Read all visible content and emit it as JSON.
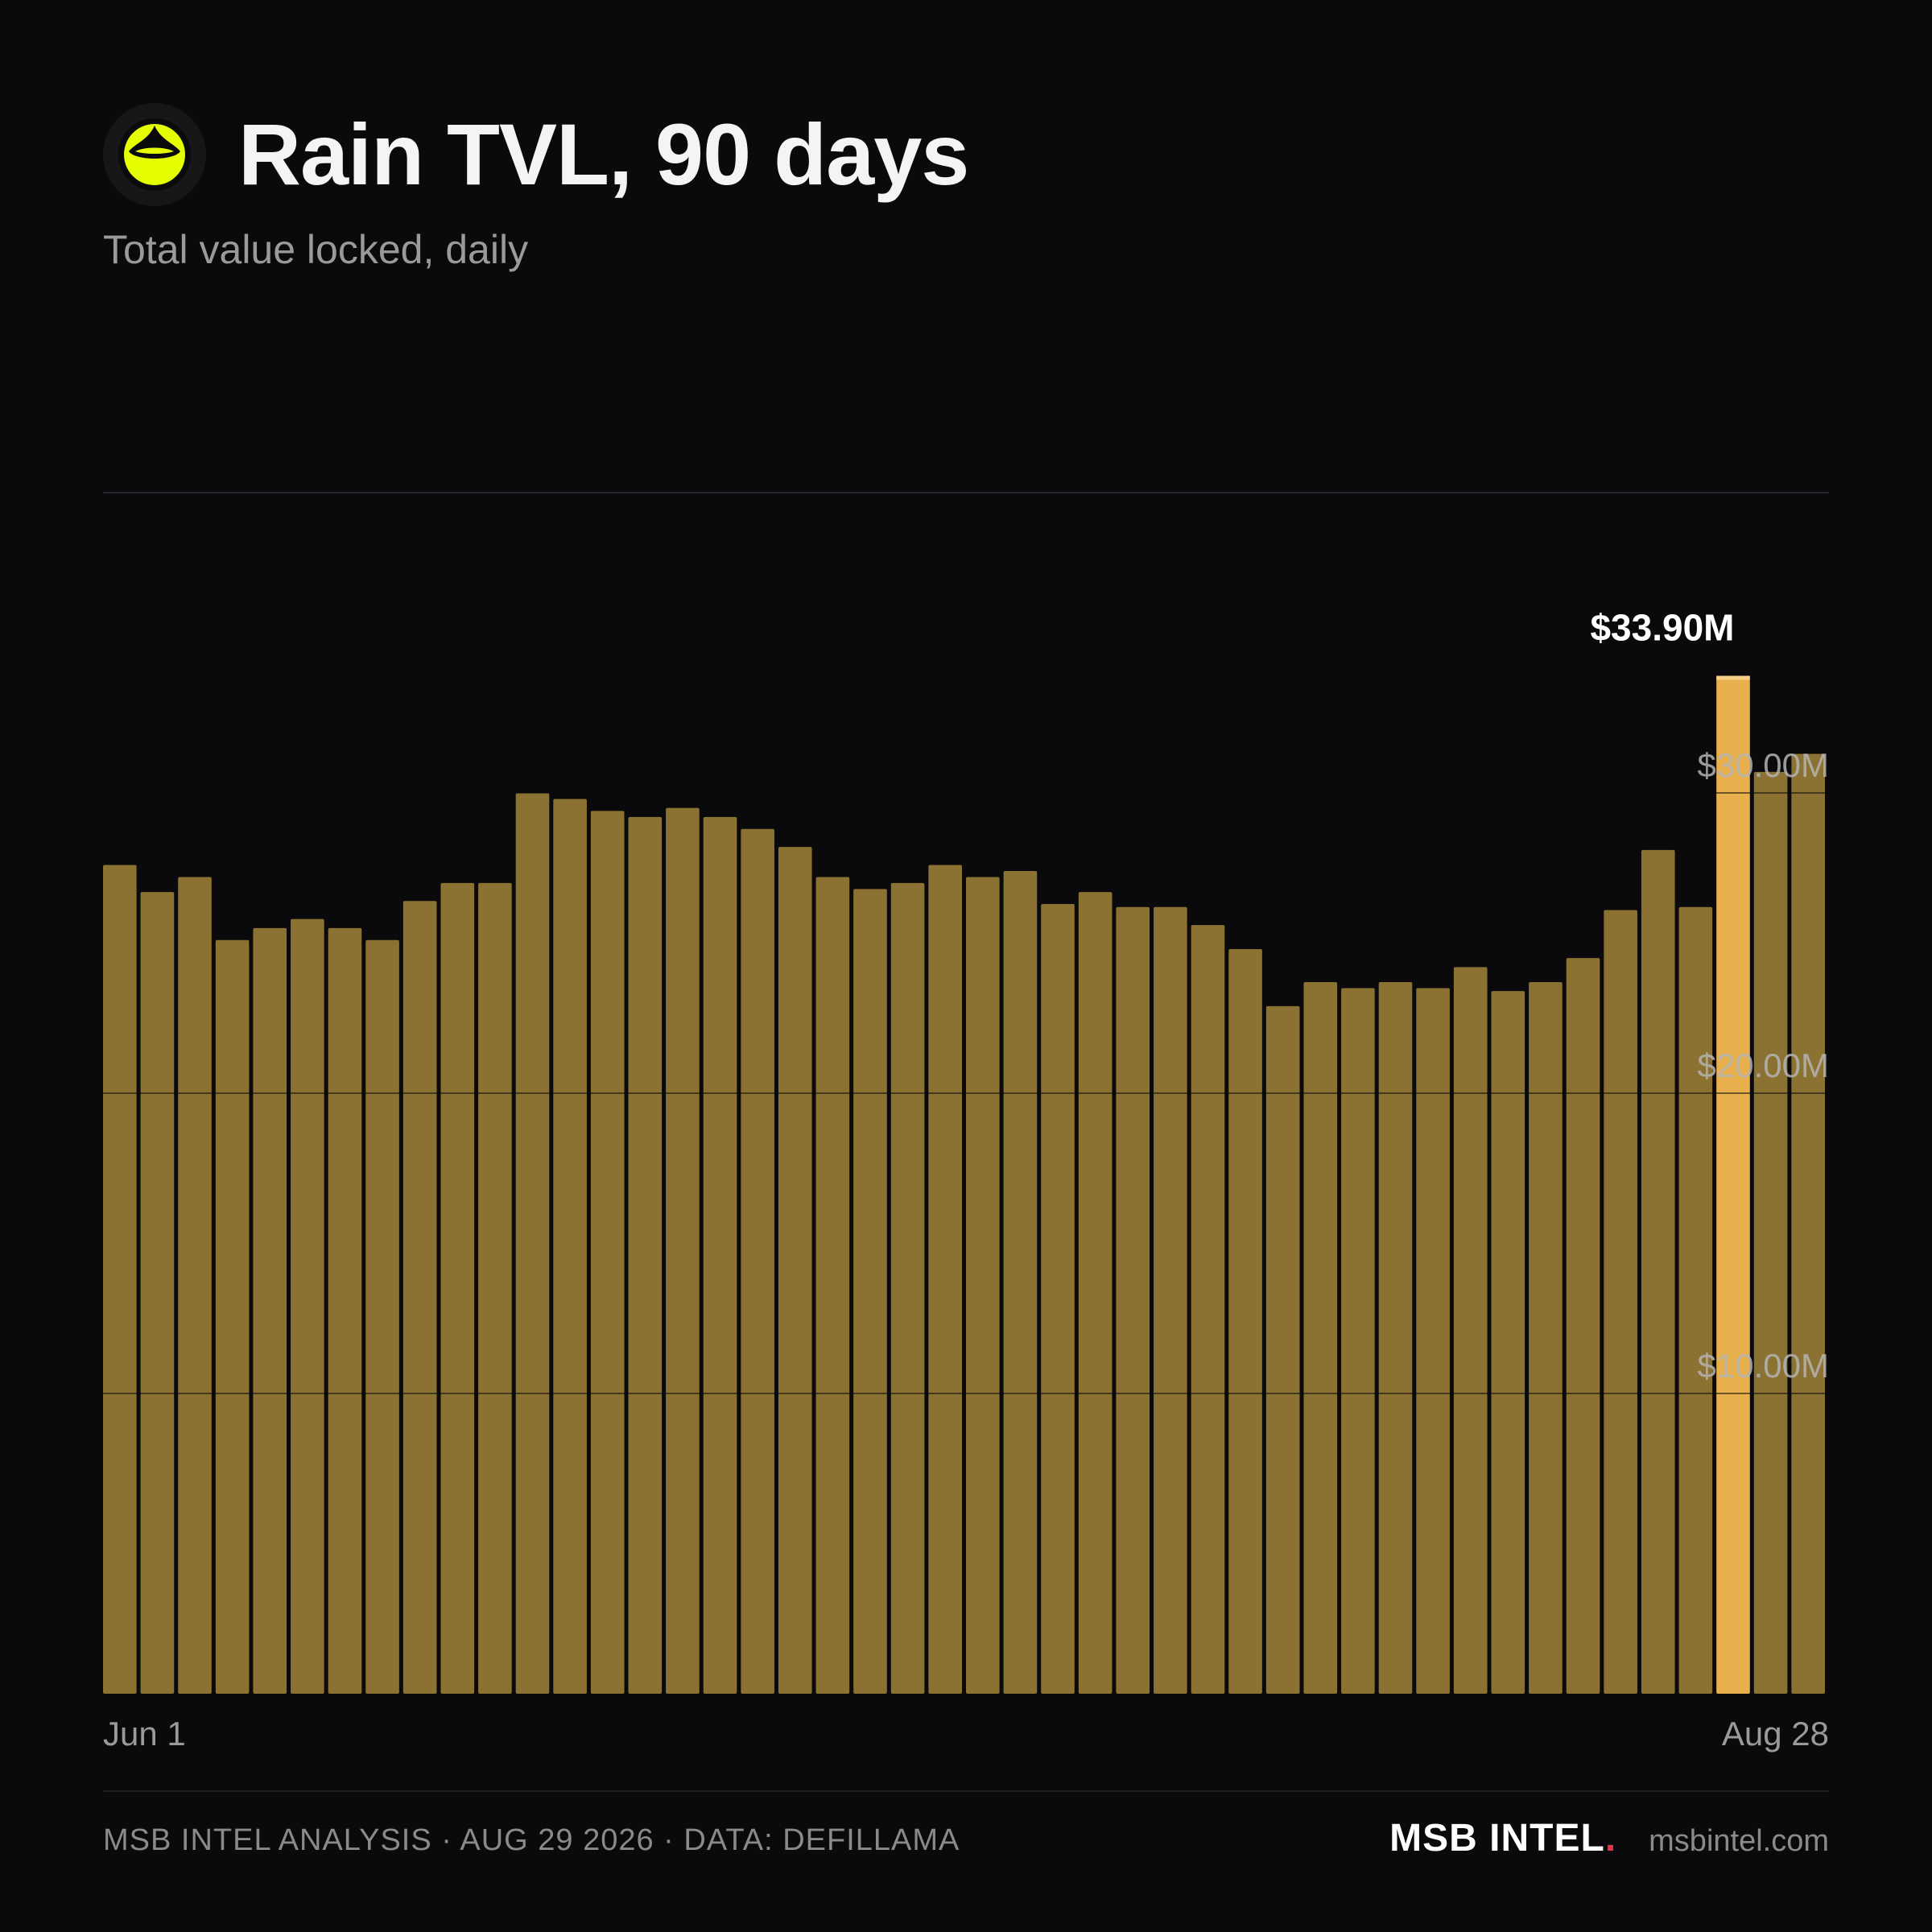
{
  "header": {
    "title": "Rain TVL, 90 days",
    "subtitle": "Total value locked, daily"
  },
  "colors": {
    "background": "#0a0a0c",
    "bar": "#8c7232",
    "highlight_bar": "#e8b04c",
    "logo_accent": "#e6ff00"
  },
  "chart_data": {
    "type": "bar",
    "title": "Rain TVL, 90 days",
    "subtitle": "Total value locked, daily",
    "x_tick_labels": [
      "Jun 1",
      "Aug 28"
    ],
    "y_ticks": [
      10,
      20,
      30
    ],
    "y_tick_labels": [
      "$10.00M",
      "$20.00M",
      "$30.00M"
    ],
    "ylim": [
      0,
      40
    ],
    "unit": "$M",
    "grid": true,
    "values": [
      27.6,
      26.7,
      27.2,
      25.1,
      25.5,
      25.8,
      25.5,
      25.1,
      26.4,
      27.0,
      27.0,
      30.0,
      29.8,
      29.4,
      29.2,
      29.5,
      29.2,
      28.8,
      28.2,
      27.2,
      26.8,
      27.0,
      27.6,
      27.2,
      27.4,
      26.3,
      26.7,
      26.2,
      26.2,
      25.6,
      24.8,
      22.9,
      23.7,
      23.5,
      23.7,
      23.5,
      24.2,
      23.4,
      23.7,
      24.5,
      26.1,
      28.1,
      26.2,
      33.9,
      30.7,
      31.3
    ],
    "highlight_index": 43,
    "highlight_label": "$33.90M"
  },
  "footer": {
    "credit": "MSB INTEL ANALYSIS · AUG 29 2026 · DATA: DEFILLAMA",
    "brand": "MSB INTEL",
    "brand_dot": ".",
    "site": "msbintel.com"
  }
}
